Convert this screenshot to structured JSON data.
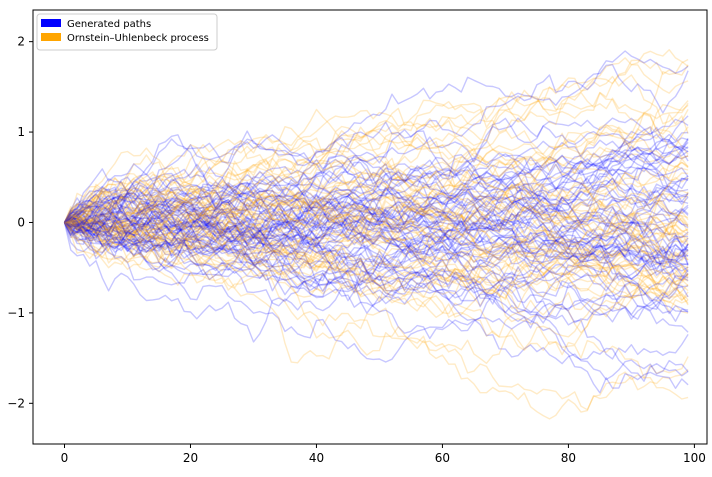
{
  "chart_data": {
    "type": "line",
    "title": "",
    "xlabel": "",
    "ylabel": "",
    "xlim": [
      -5,
      102
    ],
    "ylim": [
      -2.45,
      2.35
    ],
    "x_ticks": [
      0,
      20,
      40,
      60,
      80,
      100
    ],
    "x_tick_labels": [
      "0",
      "20",
      "40",
      "60",
      "80",
      "100"
    ],
    "y_ticks": [
      -2,
      -1,
      0,
      1,
      2
    ],
    "y_tick_labels": [
      "−2",
      "−1",
      "0",
      "1",
      "2"
    ],
    "grid": false,
    "legend_position": "upper-left",
    "n_steps": 100,
    "start_value": 0,
    "series": [
      {
        "name": "Generated paths",
        "color": "#0000ff",
        "path_count": 64,
        "opacity": 0.22,
        "sd_at_end_approx": 0.7
      },
      {
        "name": "Ornstein–Uhlenbeck process",
        "color": "#ffa500",
        "path_count": 64,
        "opacity": 0.22,
        "sd_at_end_approx": 0.7
      }
    ]
  }
}
